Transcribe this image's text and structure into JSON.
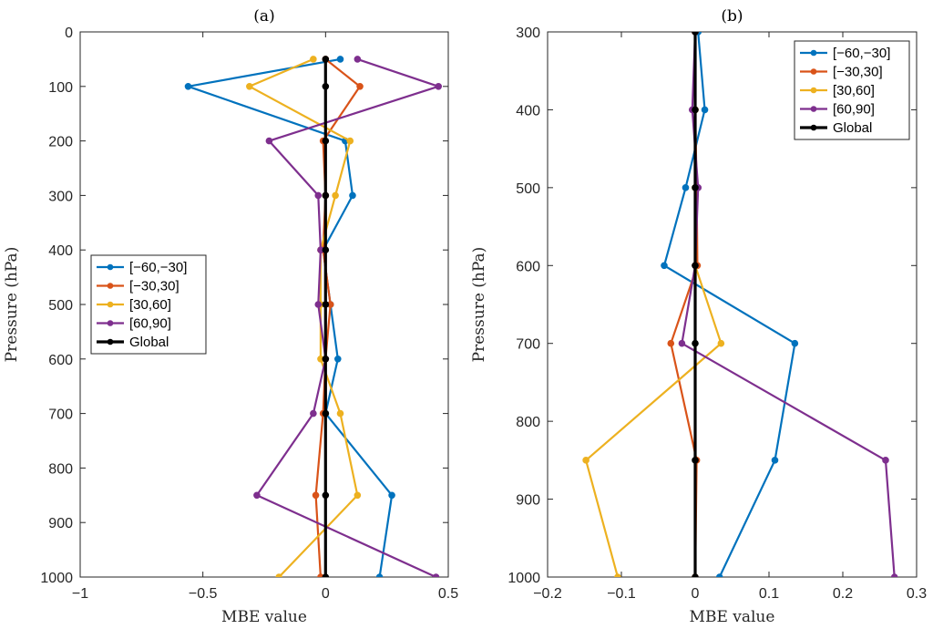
{
  "chart_data": [
    {
      "type": "line",
      "title": "(a)",
      "xlabel": "MBE value",
      "ylabel": "Pressure (hPa)",
      "xlim": [
        -1,
        0.5
      ],
      "ylim": [
        0,
        1000
      ],
      "y_reversed": true,
      "xticks": [
        -1,
        -0.5,
        0,
        0.5
      ],
      "xtick_labels": [
        "−1",
        "−0.5",
        "0",
        "0.5"
      ],
      "yticks": [
        0,
        100,
        200,
        300,
        400,
        500,
        600,
        700,
        800,
        900,
        1000
      ],
      "ytick_labels": [
        "0",
        "100",
        "200",
        "300",
        "400",
        "500",
        "600",
        "700",
        "800",
        "900",
        "1000"
      ],
      "legend_position": "middle-left",
      "series": [
        {
          "name": "[−60,−30]",
          "color": "#0072BD",
          "x": [
            0.06,
            -0.56,
            0.08,
            0.11,
            -0.01,
            0.02,
            0.05,
            0.0,
            0.27,
            0.22
          ],
          "y": [
            50,
            100,
            200,
            300,
            400,
            500,
            600,
            700,
            850,
            1000
          ]
        },
        {
          "name": "[−30,30]",
          "color": "#D95319",
          "x": [
            0.0,
            0.14,
            -0.01,
            0.0,
            -0.01,
            0.02,
            0.0,
            -0.01,
            -0.04,
            -0.02
          ],
          "y": [
            50,
            100,
            200,
            300,
            400,
            500,
            600,
            700,
            850,
            1000
          ]
        },
        {
          "name": "[30,60]",
          "color": "#EDB120",
          "x": [
            -0.05,
            -0.31,
            0.1,
            0.04,
            -0.02,
            -0.02,
            -0.02,
            0.06,
            0.13,
            -0.19
          ],
          "y": [
            50,
            100,
            200,
            300,
            400,
            500,
            600,
            700,
            850,
            1000
          ]
        },
        {
          "name": "[60,90]",
          "color": "#7E2F8E",
          "x": [
            0.13,
            0.46,
            -0.23,
            -0.03,
            -0.02,
            -0.03,
            0.0,
            -0.05,
            -0.28,
            0.45
          ],
          "y": [
            50,
            100,
            200,
            300,
            400,
            500,
            600,
            700,
            850,
            1000
          ]
        },
        {
          "name": "Global",
          "color": "#000000",
          "x": [
            0.0,
            0.0,
            0.0,
            0.0,
            0.0,
            0.0,
            0.0,
            0.0,
            0.0,
            0.0
          ],
          "y": [
            50,
            100,
            200,
            300,
            400,
            500,
            600,
            700,
            850,
            1000
          ]
        }
      ]
    },
    {
      "type": "line",
      "title": "(b)",
      "xlabel": "MBE value",
      "ylabel": "Pressure (hPa)",
      "xlim": [
        -0.2,
        0.3
      ],
      "ylim": [
        300,
        1000
      ],
      "y_reversed": true,
      "xticks": [
        -0.2,
        -0.1,
        0,
        0.1,
        0.2,
        0.3
      ],
      "xtick_labels": [
        "−0.2",
        "−0.1",
        "0",
        "0.1",
        "0.2",
        "0.3"
      ],
      "yticks": [
        300,
        400,
        500,
        600,
        700,
        800,
        900,
        1000
      ],
      "ytick_labels": [
        "300",
        "400",
        "500",
        "600",
        "700",
        "800",
        "900",
        "1000"
      ],
      "legend_position": "top-right",
      "series": [
        {
          "name": "[−60,−30]",
          "color": "#0072BD",
          "x": [
            0.004,
            0.013,
            -0.013,
            -0.042,
            0.135,
            0.108,
            0.033
          ],
          "y": [
            300,
            400,
            500,
            600,
            700,
            850,
            1000
          ]
        },
        {
          "name": "[−30,30]",
          "color": "#D95319",
          "x": [
            0.0,
            0.0,
            0.002,
            0.003,
            -0.033,
            0.002,
            0.0
          ],
          "y": [
            300,
            400,
            500,
            600,
            700,
            850,
            1000
          ]
        },
        {
          "name": "[30,60]",
          "color": "#EDB120",
          "x": [
            0.0,
            0.0,
            0.0,
            0.0,
            0.035,
            -0.148,
            -0.105
          ],
          "y": [
            300,
            400,
            500,
            600,
            700,
            850,
            1000
          ]
        },
        {
          "name": "[60,90]",
          "color": "#7E2F8E",
          "x": [
            0.0,
            -0.004,
            0.004,
            0.0,
            -0.018,
            0.258,
            0.27
          ],
          "y": [
            300,
            400,
            500,
            600,
            700,
            850,
            1000
          ]
        },
        {
          "name": "Global",
          "color": "#000000",
          "x": [
            0.0,
            0.0,
            0.0,
            0.0,
            0.0,
            0.0,
            0.0
          ],
          "y": [
            300,
            400,
            500,
            600,
            700,
            850,
            1000
          ]
        }
      ]
    }
  ]
}
